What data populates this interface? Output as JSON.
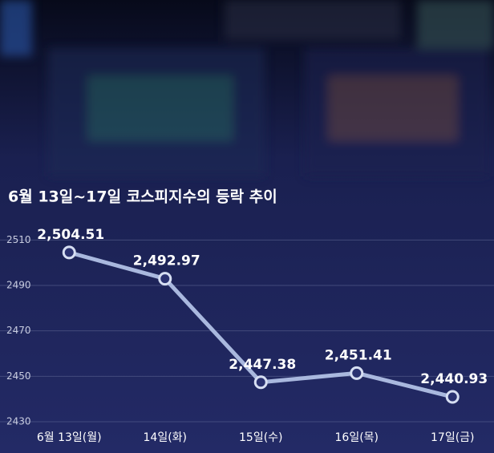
{
  "chart_data": {
    "type": "line",
    "title": "6월 13일~17일 코스피지수의 등락 추이",
    "categories": [
      "6월 13일(월)",
      "14일(화)",
      "15일(수)",
      "16일(목)",
      "17일(금)"
    ],
    "values": [
      2504.51,
      2492.97,
      2447.38,
      2451.41,
      2440.93
    ],
    "value_labels": [
      "2,504.51",
      "2,492.97",
      "2,447.38",
      "2,451.41",
      "2,440.93"
    ],
    "color": "#a9b8de",
    "ylim": [
      2430,
      2520
    ],
    "yticks": [
      2430,
      2450,
      2470,
      2490,
      2510
    ],
    "grid": true
  }
}
